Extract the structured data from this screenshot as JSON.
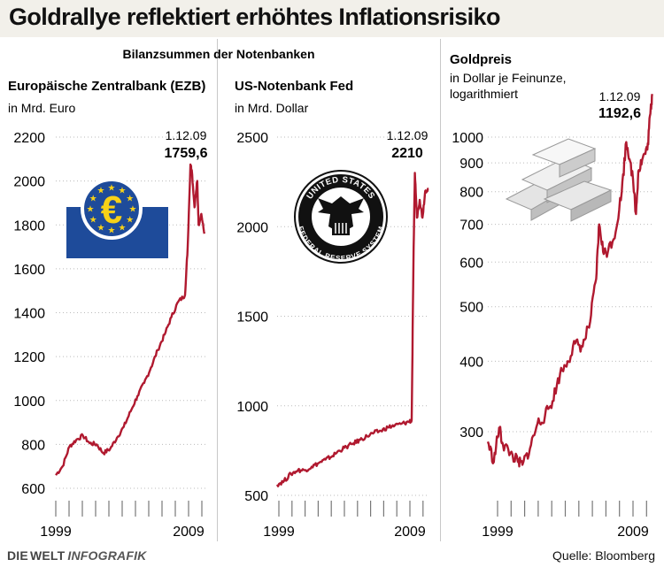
{
  "header": {
    "title": "Goldrallye reflektiert erhöhtes Inflationsrisiko",
    "group_label": "Bilanzsummen der Notenbanken"
  },
  "colors": {
    "line": "#b0192f",
    "ecb_blue": "#1e4b9a",
    "ecb_star": "#f7d117",
    "title_bg": "#f2f0ea"
  },
  "footer": {
    "brand_die": "DIE",
    "brand_welt": "WELT",
    "brand_infografik": "INFOGRAFIK",
    "source": "Quelle: Bloomberg"
  },
  "icons": [
    "euro-logo-icon",
    "fed-seal-icon",
    "gold-bars-icon"
  ],
  "chart_data": [
    {
      "type": "line",
      "title": "Europäische Zentralbank (EZB)",
      "unit": "in Mrd. Euro",
      "ylim": [
        600,
        2200
      ],
      "yticks": [
        600,
        800,
        1000,
        1200,
        1400,
        1600,
        1800,
        2000,
        2200
      ],
      "log": false,
      "xrange": [
        1999,
        2010
      ],
      "xticks": [
        "1999",
        "2009"
      ],
      "annotation": {
        "date": "1.12.09",
        "value": "1759,6"
      },
      "series": [
        {
          "name": "EZB",
          "x": [
            1999.0,
            1999.5,
            2000.0,
            2000.5,
            2001.0,
            2001.5,
            2002.0,
            2002.5,
            2003.0,
            2003.5,
            2004.0,
            2004.5,
            2005.0,
            2005.5,
            2006.0,
            2006.5,
            2007.0,
            2007.5,
            2008.0,
            2008.5,
            2008.7,
            2008.9,
            2009.0,
            2009.2,
            2009.4,
            2009.5,
            2009.7,
            2009.92
          ],
          "values": [
            660,
            700,
            790,
            820,
            840,
            805,
            800,
            760,
            780,
            830,
            880,
            950,
            1020,
            1080,
            1150,
            1230,
            1300,
            1380,
            1450,
            1480,
            1700,
            2075,
            2050,
            1880,
            2000,
            1800,
            1850,
            1760
          ]
        }
      ],
      "seal_text": []
    },
    {
      "type": "line",
      "title": "US-Notenbank Fed",
      "unit": "in Mrd. Dollar",
      "ylim": [
        500,
        2500
      ],
      "yticks": [
        500,
        1000,
        1500,
        2000,
        2500
      ],
      "log": false,
      "xrange": [
        1999,
        2010
      ],
      "xticks": [
        "1999",
        "2009"
      ],
      "annotation": {
        "date": "1.12.09",
        "value": "2210"
      },
      "series": [
        {
          "name": "Fed",
          "x": [
            1999.0,
            1999.5,
            2000.0,
            2000.5,
            2001.0,
            2001.5,
            2002.0,
            2002.5,
            2003.0,
            2003.5,
            2004.0,
            2004.5,
            2005.0,
            2005.5,
            2006.0,
            2006.5,
            2007.0,
            2007.5,
            2008.0,
            2008.5,
            2008.72,
            2008.85,
            2008.95,
            2009.1,
            2009.3,
            2009.5,
            2009.7,
            2009.92
          ],
          "values": [
            560,
            580,
            620,
            640,
            640,
            660,
            680,
            700,
            720,
            750,
            770,
            790,
            810,
            830,
            850,
            860,
            880,
            890,
            900,
            910,
            920,
            1800,
            2300,
            2050,
            2150,
            2050,
            2200,
            2210
          ]
        }
      ],
      "seal_text": [
        "UNITED STATES",
        "FEDERAL RESERVE SYSTEM"
      ]
    },
    {
      "type": "line",
      "title": "Goldpreis",
      "unit": "in Dollar je Feinunze, logarithmiert",
      "unit_lines": [
        "in Dollar je Feinunze,",
        "logarithmiert"
      ],
      "ylim": [
        250,
        1300
      ],
      "yticks": [
        300,
        400,
        500,
        600,
        700,
        800,
        900,
        1000
      ],
      "log": true,
      "xrange": [
        1999,
        2010
      ],
      "xticks": [
        "1999",
        "2009"
      ],
      "annotation": {
        "date": "1.12.09",
        "value": "1192,6"
      },
      "series": [
        {
          "name": "Gold",
          "x": [
            1999.0,
            1999.4,
            1999.75,
            2000.0,
            2000.5,
            2001.0,
            2001.3,
            2001.8,
            2002.3,
            2002.8,
            2003.3,
            2003.8,
            2004.3,
            2004.8,
            2005.3,
            2005.8,
            2006.2,
            2006.4,
            2006.7,
            2007.0,
            2007.5,
            2007.9,
            2008.2,
            2008.5,
            2008.85,
            2009.0,
            2009.3,
            2009.6,
            2009.8,
            2009.92
          ],
          "values": [
            288,
            265,
            305,
            285,
            275,
            265,
            262,
            280,
            310,
            320,
            340,
            380,
            400,
            430,
            425,
            470,
            560,
            700,
            620,
            630,
            680,
            800,
            980,
            900,
            730,
            870,
            920,
            950,
            1100,
            1193
          ]
        }
      ],
      "seal_text": []
    }
  ]
}
